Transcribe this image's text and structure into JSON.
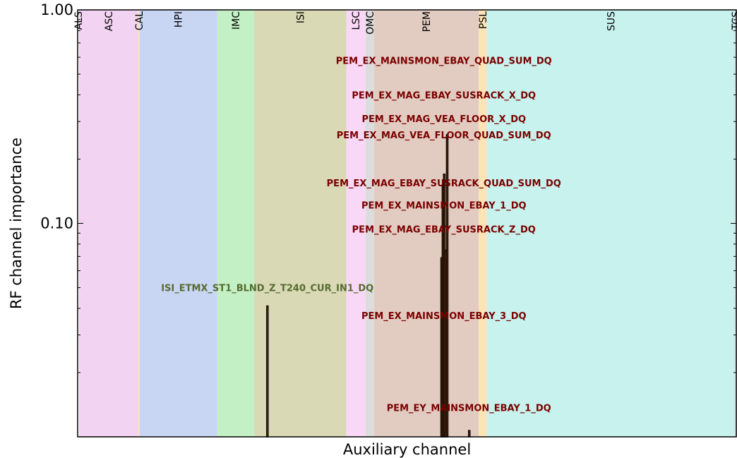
{
  "chart_data": {
    "type": "bar",
    "title": "",
    "xlabel": "Auxiliary channel",
    "ylabel": "RF channel importance",
    "yscale": "log",
    "ylim": [
      0.01,
      1.0
    ],
    "yticks": [
      {
        "value": 0.1,
        "label": "0.10"
      },
      {
        "value": 1.0,
        "label": "1.00"
      }
    ],
    "xlim": [
      0,
      1000
    ],
    "groups": [
      {
        "name": "ALS",
        "start": 0,
        "end": 2,
        "color": "#ffffff"
      },
      {
        "name": "ASC",
        "start": 2,
        "end": 92,
        "color": "#f3d3f2"
      },
      {
        "name": "CAL",
        "start": 92,
        "end": 94,
        "color": "#fde3b6"
      },
      {
        "name": "HPI",
        "start": 94,
        "end": 212,
        "color": "#c8d5f3"
      },
      {
        "name": "IMC",
        "start": 212,
        "end": 268,
        "color": "#c4f0c5"
      },
      {
        "name": "ISI",
        "start": 268,
        "end": 408,
        "color": "#d9d9b5"
      },
      {
        "name": "LSC",
        "start": 408,
        "end": 437,
        "color": "#f8d8f6"
      },
      {
        "name": "OMC",
        "start": 437,
        "end": 450,
        "color": "#dcdcdc"
      },
      {
        "name": "PEM",
        "start": 450,
        "end": 609,
        "color": "#e2ccc1"
      },
      {
        "name": "PSL",
        "start": 609,
        "end": 621,
        "color": "#fde3b6"
      },
      {
        "name": "SUS",
        "start": 621,
        "end": 998,
        "color": "#c7f2ed"
      },
      {
        "name": "TCS",
        "start": 998,
        "end": 1000,
        "color": "#f3d3f2"
      }
    ],
    "bars": [
      {
        "x": 288,
        "value": 0.041,
        "color": "#808000"
      },
      {
        "x": 552.5,
        "value": 0.069,
        "color": "#8b3e1a"
      },
      {
        "x": 554.5,
        "value": 0.15,
        "color": "#8b3e1a"
      },
      {
        "x": 556.5,
        "value": 0.17,
        "color": "#8b3e1a"
      },
      {
        "x": 558.5,
        "value": 0.075,
        "color": "#8b3e1a"
      },
      {
        "x": 561,
        "value": 0.26,
        "color": "#8b3e1a"
      },
      {
        "x": 594.5,
        "value": 0.0107,
        "color": "#8b3e1a"
      }
    ],
    "annotations": [
      {
        "text": "PEM_EX_MAINSMON_EBAY_QUAD_SUM_DQ",
        "x": 556,
        "value": 0.58,
        "color": "#7a0000"
      },
      {
        "text": "PEM_EX_MAG_EBAY_SUSRACK_X_DQ",
        "x": 556,
        "value": 0.4,
        "color": "#7a0000"
      },
      {
        "text": "PEM_EX_MAG_VEA_FLOOR_X_DQ",
        "x": 556,
        "value": 0.31,
        "color": "#7a0000"
      },
      {
        "text": "PEM_EX_MAG_VEA_FLOOR_QUAD_SUM_DQ",
        "x": 556,
        "value": 0.26,
        "color": "#7a0000"
      },
      {
        "text": "PEM_EX_MAG_EBAY_SUSRACK_QUAD_SUM_DQ",
        "x": 556,
        "value": 0.155,
        "color": "#7a0000"
      },
      {
        "text": "PEM_EX_MAINSMON_EBAY_1_DQ",
        "x": 556,
        "value": 0.122,
        "color": "#7a0000"
      },
      {
        "text": "PEM_EX_MAG_EBAY_SUSRACK_Z_DQ",
        "x": 556,
        "value": 0.094,
        "color": "#7a0000"
      },
      {
        "text": "ISI_ETMX_ST1_BLND_Z_T240_CUR_IN1_DQ",
        "x": 288,
        "value": 0.05,
        "color": "#556b2f"
      },
      {
        "text": "PEM_EX_MAINSMON_EBAY_3_DQ",
        "x": 556,
        "value": 0.037,
        "color": "#7a0000"
      },
      {
        "text": "PEM_EY_MAINSMON_EBAY_1_DQ",
        "x": 594,
        "value": 0.0137,
        "color": "#7a0000"
      }
    ]
  }
}
